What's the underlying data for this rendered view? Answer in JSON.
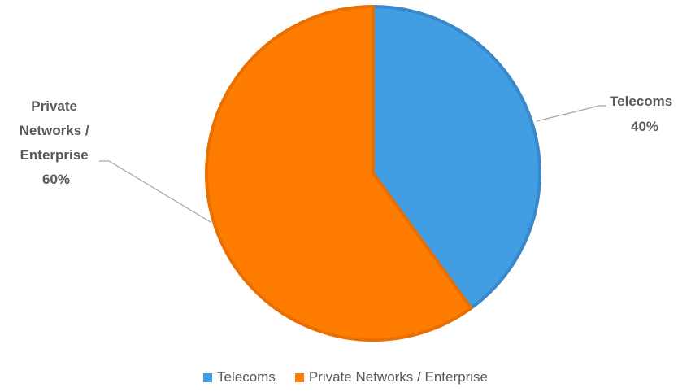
{
  "chart_data": {
    "type": "pie",
    "title": "",
    "slices": [
      {
        "label": "Telecoms",
        "value": 40,
        "display": "40%",
        "color": "#419ee3",
        "edge": "#3a88cb"
      },
      {
        "label": "Private Networks / Enterprise",
        "value": 60,
        "display": "60%",
        "color": "#fe7c00",
        "edge": "#e96f00"
      }
    ],
    "legend": {
      "position": "bottom"
    }
  },
  "labels": {
    "telecoms": [
      "Telecoms",
      "40%"
    ],
    "private": [
      "Private",
      "Networks /",
      "Enterprise",
      "60%"
    ]
  }
}
